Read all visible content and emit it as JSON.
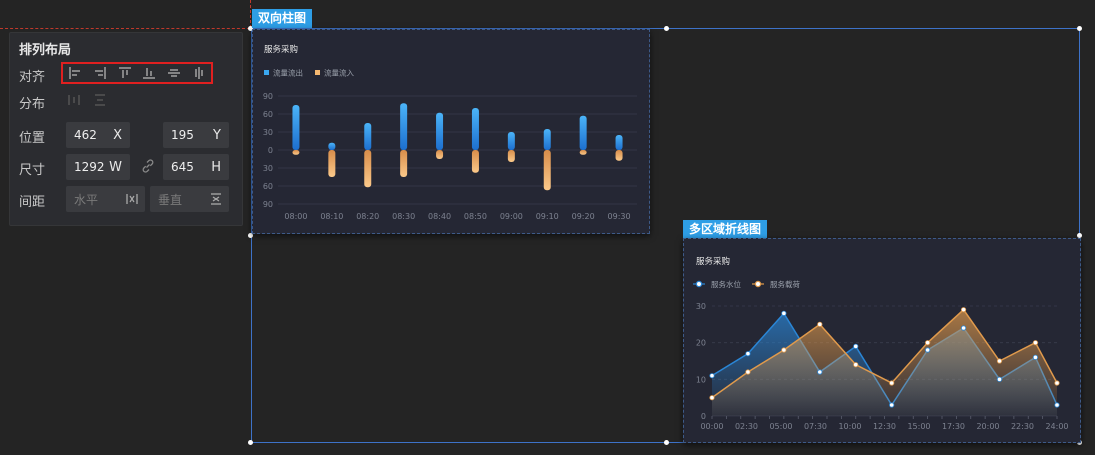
{
  "layout_panel": {
    "title": "排列布局",
    "align_label": "对齐",
    "distribute_label": "分布",
    "position_label": "位置",
    "size_label": "尺寸",
    "spacing_label": "间距",
    "position_x": "462",
    "position_x_unit": "X",
    "position_y": "195",
    "position_y_unit": "Y",
    "size_w": "1292",
    "size_w_unit": "W",
    "size_h": "645",
    "size_h_unit": "H",
    "spacing_horizontal": "水平",
    "spacing_vertical": "垂直"
  },
  "widgets": {
    "bar_tag": "双向柱图",
    "line_tag": "多区域折线图"
  },
  "chart_data": [
    {
      "type": "bar",
      "title": "服务采购",
      "categories": [
        "08:00",
        "08:10",
        "08:20",
        "08:30",
        "08:40",
        "08:50",
        "09:00",
        "09:10",
        "09:20",
        "09:30"
      ],
      "series": [
        {
          "name": "流量流出",
          "values": [
            75,
            12,
            45,
            78,
            62,
            70,
            30,
            35,
            57,
            25
          ],
          "color": "#3aa7f0"
        },
        {
          "name": "流量流入",
          "values": [
            -8,
            -45,
            -62,
            -45,
            -15,
            -38,
            -20,
            -67,
            -8,
            -18
          ],
          "color": "#f5b871"
        }
      ],
      "y_tick_labels": [
        "90",
        "60",
        "30",
        "0",
        "30",
        "60",
        "90"
      ],
      "ylim": [
        -90,
        90
      ]
    },
    {
      "type": "area",
      "title": "服务采购",
      "categories": [
        "00:00",
        "02:30",
        "05:00",
        "07:30",
        "10:00",
        "12:30",
        "15:00",
        "17:30",
        "20:00",
        "22:30",
        "24:00"
      ],
      "x": [
        0,
        1,
        2,
        3,
        4,
        5,
        6,
        7,
        8,
        9,
        10,
        11,
        12,
        13,
        14,
        15,
        16,
        17,
        18,
        19,
        20,
        21,
        22,
        23,
        24
      ],
      "series": [
        {
          "name": "服务水位",
          "color": "#2a86d6",
          "points": [
            [
              0,
              11
            ],
            [
              2.5,
              17
            ],
            [
              5,
              28
            ],
            [
              7.5,
              12
            ],
            [
              10,
              19
            ],
            [
              12.5,
              3
            ],
            [
              15,
              18
            ],
            [
              17.5,
              24
            ],
            [
              20,
              10
            ],
            [
              22.5,
              16
            ],
            [
              24,
              3
            ]
          ]
        },
        {
          "name": "服务载荷",
          "color": "#e09a4c",
          "points": [
            [
              0,
              5
            ],
            [
              2.5,
              12
            ],
            [
              5,
              18
            ],
            [
              7.5,
              25
            ],
            [
              10,
              14
            ],
            [
              12.5,
              9
            ],
            [
              15,
              20
            ],
            [
              17.5,
              29
            ],
            [
              20,
              15
            ],
            [
              22.5,
              20
            ],
            [
              24,
              9
            ]
          ]
        }
      ],
      "y_ticks": [
        0,
        10,
        20,
        30
      ],
      "ylim": [
        0,
        30
      ]
    }
  ]
}
